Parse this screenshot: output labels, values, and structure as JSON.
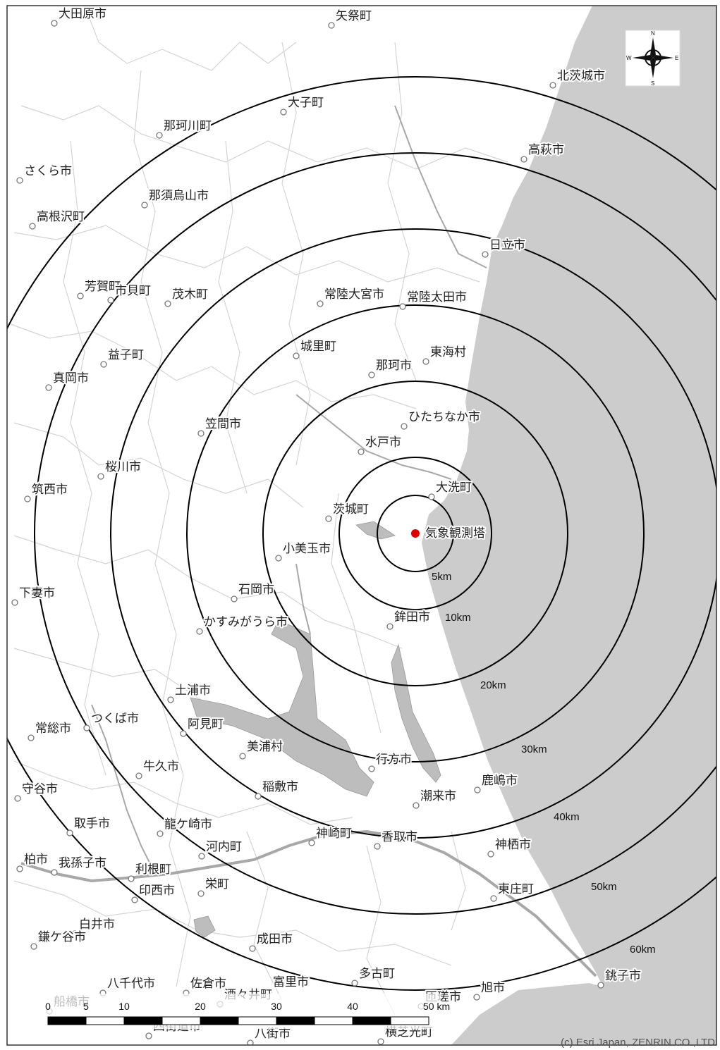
{
  "map": {
    "center_label": "気象観測塔",
    "copyright": "(c) Esri Japan, ZENRIN CO.,LTD",
    "compass": {
      "n": "N",
      "s": "S",
      "e": "E",
      "w": "W"
    },
    "rings": [
      {
        "km": 5,
        "label": "5km"
      },
      {
        "km": 10,
        "label": "10km"
      },
      {
        "km": 20,
        "label": "20km"
      },
      {
        "km": 30,
        "label": "30km"
      },
      {
        "km": 40,
        "label": "40km"
      },
      {
        "km": 50,
        "label": "50km"
      },
      {
        "km": 60,
        "label": "60km"
      }
    ],
    "scale_bar": {
      "ticks": [
        "0",
        "5",
        "10",
        "20",
        "30",
        "40",
        "50 km"
      ]
    },
    "places": [
      {
        "name": "大田原市"
      },
      {
        "name": "矢祭町"
      },
      {
        "name": "北茨城市"
      },
      {
        "name": "大子町"
      },
      {
        "name": "那珂川町"
      },
      {
        "name": "高萩市"
      },
      {
        "name": "さくら市"
      },
      {
        "name": "那須烏山市"
      },
      {
        "name": "高根沢町"
      },
      {
        "name": "日立市"
      },
      {
        "name": "芳賀町"
      },
      {
        "name": "市貝町"
      },
      {
        "name": "茂木町"
      },
      {
        "name": "常陸大宮市"
      },
      {
        "name": "常陸太田市"
      },
      {
        "name": "益子町"
      },
      {
        "name": "城里町"
      },
      {
        "name": "東海村"
      },
      {
        "name": "真岡市"
      },
      {
        "name": "那珂市"
      },
      {
        "name": "笠間市"
      },
      {
        "name": "ひたちなか市"
      },
      {
        "name": "水戸市"
      },
      {
        "name": "桜川市"
      },
      {
        "name": "筑西市"
      },
      {
        "name": "大洗町"
      },
      {
        "name": "茨城町"
      },
      {
        "name": "小美玉市"
      },
      {
        "name": "下妻市"
      },
      {
        "name": "石岡市"
      },
      {
        "name": "鉾田市"
      },
      {
        "name": "かすみがうら市"
      },
      {
        "name": "土浦市"
      },
      {
        "name": "つくば市"
      },
      {
        "name": "阿見町"
      },
      {
        "name": "常総市"
      },
      {
        "name": "美浦村"
      },
      {
        "name": "行方市"
      },
      {
        "name": "牛久市"
      },
      {
        "name": "守谷市"
      },
      {
        "name": "稲敷市"
      },
      {
        "name": "鹿嶋市"
      },
      {
        "name": "潮来市"
      },
      {
        "name": "取手市"
      },
      {
        "name": "龍ケ崎市"
      },
      {
        "name": "神崎町"
      },
      {
        "name": "香取市"
      },
      {
        "name": "神栖市"
      },
      {
        "name": "柏市"
      },
      {
        "name": "我孫子市"
      },
      {
        "name": "河内町"
      },
      {
        "name": "利根町"
      },
      {
        "name": "印西市"
      },
      {
        "name": "栄町"
      },
      {
        "name": "東庄町"
      },
      {
        "name": "白井市"
      },
      {
        "name": "鎌ケ谷市"
      },
      {
        "name": "成田市"
      },
      {
        "name": "多古町"
      },
      {
        "name": "銚子市"
      },
      {
        "name": "八千代市"
      },
      {
        "name": "佐倉市"
      },
      {
        "name": "富里市"
      },
      {
        "name": "旭市"
      },
      {
        "name": "船橋市"
      },
      {
        "name": "酒々井町"
      },
      {
        "name": "匝瑳市"
      },
      {
        "name": "四街道市"
      },
      {
        "name": "八街市"
      },
      {
        "name": "横芝光町"
      }
    ]
  }
}
